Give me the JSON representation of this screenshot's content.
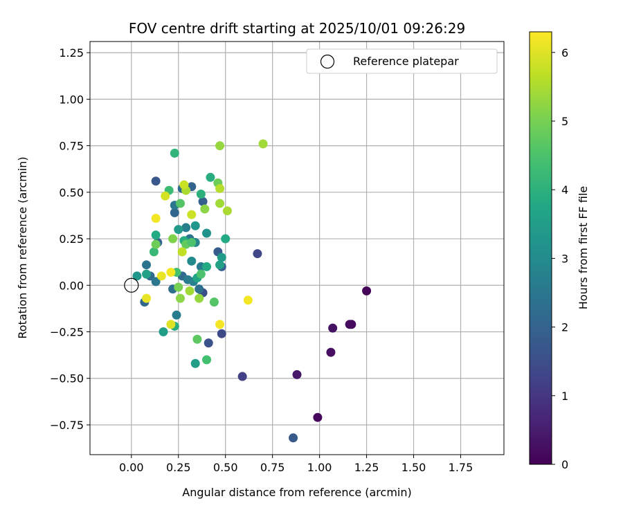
{
  "chart_data": {
    "type": "scatter",
    "title": "FOV centre drift starting at 2025/10/01 09:26:29",
    "xlabel": "Angular distance from reference (arcmin)",
    "ylabel": "Rotation from reference (arcmin)",
    "xlim": [
      -0.22,
      1.98
    ],
    "ylim": [
      -0.91,
      1.31
    ],
    "xticks": [
      0.0,
      0.25,
      0.5,
      0.75,
      1.0,
      1.25,
      1.5,
      1.75
    ],
    "xtick_labels": [
      "0.00",
      "0.25",
      "0.50",
      "0.75",
      "1.00",
      "1.25",
      "1.50",
      "1.75"
    ],
    "yticks": [
      -0.75,
      -0.5,
      -0.25,
      0.0,
      0.25,
      0.5,
      0.75,
      1.0,
      1.25
    ],
    "ytick_labels": [
      "−0.75",
      "−0.50",
      "−0.25",
      "0.00",
      "0.25",
      "0.50",
      "0.75",
      "1.00",
      "1.25"
    ],
    "grid": true,
    "legend": {
      "position": "top-right",
      "entries": [
        "Reference platepar"
      ]
    },
    "reference_point": {
      "x": 0.0,
      "y": 0.0,
      "label": "Reference platepar"
    },
    "colorbar": {
      "label": "Hours from first FF file",
      "colormap": "viridis",
      "min": 0,
      "max": 6.3,
      "ticks": [
        0,
        1,
        2,
        3,
        4,
        5,
        6
      ],
      "tick_labels": [
        "0",
        "1",
        "2",
        "3",
        "4",
        "5",
        "6"
      ]
    },
    "points": [
      {
        "x": 1.25,
        "y": -0.03,
        "c": 0.05
      },
      {
        "x": 1.17,
        "y": -0.21,
        "c": 0.15
      },
      {
        "x": 1.16,
        "y": -0.21,
        "c": 0.2
      },
      {
        "x": 1.07,
        "y": -0.23,
        "c": 0.3
      },
      {
        "x": 1.06,
        "y": -0.36,
        "c": 0.25
      },
      {
        "x": 0.88,
        "y": -0.48,
        "c": 0.4
      },
      {
        "x": 0.99,
        "y": -0.71,
        "c": 0.1
      },
      {
        "x": 0.86,
        "y": -0.82,
        "c": 1.75
      },
      {
        "x": 0.59,
        "y": -0.49,
        "c": 1.2
      },
      {
        "x": 0.67,
        "y": 0.17,
        "c": 1.3
      },
      {
        "x": 0.48,
        "y": -0.26,
        "c": 1.4
      },
      {
        "x": 0.41,
        "y": -0.31,
        "c": 1.6
      },
      {
        "x": 0.48,
        "y": 0.1,
        "c": 1.9
      },
      {
        "x": 0.46,
        "y": 0.18,
        "c": 1.8
      },
      {
        "x": 0.38,
        "y": -0.04,
        "c": 1.5
      },
      {
        "x": 0.13,
        "y": 0.56,
        "c": 1.7
      },
      {
        "x": 0.07,
        "y": -0.09,
        "c": 2.1
      },
      {
        "x": 0.08,
        "y": 0.11,
        "c": 2.4
      },
      {
        "x": 0.1,
        "y": 0.05,
        "c": 2.2
      },
      {
        "x": 0.13,
        "y": 0.02,
        "c": 2.5
      },
      {
        "x": 0.14,
        "y": 0.23,
        "c": 2.0
      },
      {
        "x": 0.22,
        "y": -0.02,
        "c": 2.3
      },
      {
        "x": 0.24,
        "y": -0.16,
        "c": 2.6
      },
      {
        "x": 0.23,
        "y": 0.39,
        "c": 2.1
      },
      {
        "x": 0.23,
        "y": 0.43,
        "c": 2.5
      },
      {
        "x": 0.27,
        "y": 0.52,
        "c": 2.2
      },
      {
        "x": 0.32,
        "y": 0.53,
        "c": 2.0
      },
      {
        "x": 0.38,
        "y": 0.45,
        "c": 1.9
      },
      {
        "x": 0.29,
        "y": 0.31,
        "c": 2.7
      },
      {
        "x": 0.31,
        "y": 0.25,
        "c": 2.4
      },
      {
        "x": 0.34,
        "y": 0.23,
        "c": 2.9
      },
      {
        "x": 0.27,
        "y": 0.05,
        "c": 2.2
      },
      {
        "x": 0.3,
        "y": 0.03,
        "c": 2.6
      },
      {
        "x": 0.32,
        "y": 0.13,
        "c": 3.0
      },
      {
        "x": 0.33,
        "y": 0.02,
        "c": 2.8
      },
      {
        "x": 0.36,
        "y": -0.02,
        "c": 2.3
      },
      {
        "x": 0.37,
        "y": 0.1,
        "c": 2.6
      },
      {
        "x": 0.4,
        "y": 0.28,
        "c": 3.2
      },
      {
        "x": 0.03,
        "y": 0.05,
        "c": 3.3
      },
      {
        "x": 0.08,
        "y": 0.06,
        "c": 3.6
      },
      {
        "x": 0.13,
        "y": 0.27,
        "c": 3.8
      },
      {
        "x": 0.17,
        "y": -0.25,
        "c": 3.5
      },
      {
        "x": 0.23,
        "y": 0.71,
        "c": 4.1
      },
      {
        "x": 0.25,
        "y": 0.3,
        "c": 3.4
      },
      {
        "x": 0.28,
        "y": 0.24,
        "c": 3.9
      },
      {
        "x": 0.34,
        "y": 0.32,
        "c": 3.3
      },
      {
        "x": 0.35,
        "y": 0.04,
        "c": 3.7
      },
      {
        "x": 0.34,
        "y": -0.42,
        "c": 3.5
      },
      {
        "x": 0.4,
        "y": 0.1,
        "c": 3.8
      },
      {
        "x": 0.42,
        "y": 0.58,
        "c": 3.9
      },
      {
        "x": 0.37,
        "y": 0.49,
        "c": 4.0
      },
      {
        "x": 0.5,
        "y": 0.25,
        "c": 3.8
      },
      {
        "x": 0.47,
        "y": 0.11,
        "c": 3.6
      },
      {
        "x": 0.48,
        "y": 0.15,
        "c": 3.4
      },
      {
        "x": 0.23,
        "y": -0.22,
        "c": 3.9
      },
      {
        "x": 0.12,
        "y": 0.18,
        "c": 4.2
      },
      {
        "x": 0.2,
        "y": 0.51,
        "c": 4.3
      },
      {
        "x": 0.4,
        "y": -0.4,
        "c": 4.4
      },
      {
        "x": 0.44,
        "y": -0.09,
        "c": 4.6
      },
      {
        "x": 0.35,
        "y": -0.29,
        "c": 4.7
      },
      {
        "x": 0.29,
        "y": 0.22,
        "c": 4.8
      },
      {
        "x": 0.32,
        "y": 0.23,
        "c": 4.5
      },
      {
        "x": 0.24,
        "y": 0.07,
        "c": 4.4
      },
      {
        "x": 0.37,
        "y": 0.06,
        "c": 4.5
      },
      {
        "x": 0.46,
        "y": 0.55,
        "c": 4.9
      },
      {
        "x": 0.26,
        "y": 0.44,
        "c": 4.6
      },
      {
        "x": 0.13,
        "y": 0.22,
        "c": 4.9
      },
      {
        "x": 0.22,
        "y": 0.25,
        "c": 5.1
      },
      {
        "x": 0.26,
        "y": -0.07,
        "c": 5.2
      },
      {
        "x": 0.25,
        "y": -0.01,
        "c": 5.0
      },
      {
        "x": 0.31,
        "y": -0.03,
        "c": 5.4
      },
      {
        "x": 0.36,
        "y": -0.07,
        "c": 5.3
      },
      {
        "x": 0.39,
        "y": 0.41,
        "c": 5.2
      },
      {
        "x": 0.29,
        "y": 0.51,
        "c": 5.5
      },
      {
        "x": 0.47,
        "y": 0.52,
        "c": 5.6
      },
      {
        "x": 0.47,
        "y": 0.44,
        "c": 5.4
      },
      {
        "x": 0.51,
        "y": 0.4,
        "c": 5.5
      },
      {
        "x": 0.47,
        "y": 0.75,
        "c": 5.3
      },
      {
        "x": 0.7,
        "y": 0.76,
        "c": 5.4
      },
      {
        "x": 0.27,
        "y": 0.18,
        "c": 5.7
      },
      {
        "x": 0.32,
        "y": 0.38,
        "c": 5.8
      },
      {
        "x": 0.18,
        "y": 0.48,
        "c": 5.9
      },
      {
        "x": 0.28,
        "y": 0.54,
        "c": 5.8
      },
      {
        "x": 0.13,
        "y": 0.36,
        "c": 6.2
      },
      {
        "x": 0.16,
        "y": 0.05,
        "c": 6.1
      },
      {
        "x": 0.21,
        "y": 0.07,
        "c": 6.2
      },
      {
        "x": 0.08,
        "y": -0.07,
        "c": 6.1
      },
      {
        "x": 0.21,
        "y": -0.21,
        "c": 6.0
      },
      {
        "x": 0.47,
        "y": -0.21,
        "c": 6.2
      },
      {
        "x": 0.62,
        "y": -0.08,
        "c": 6.2
      }
    ]
  }
}
